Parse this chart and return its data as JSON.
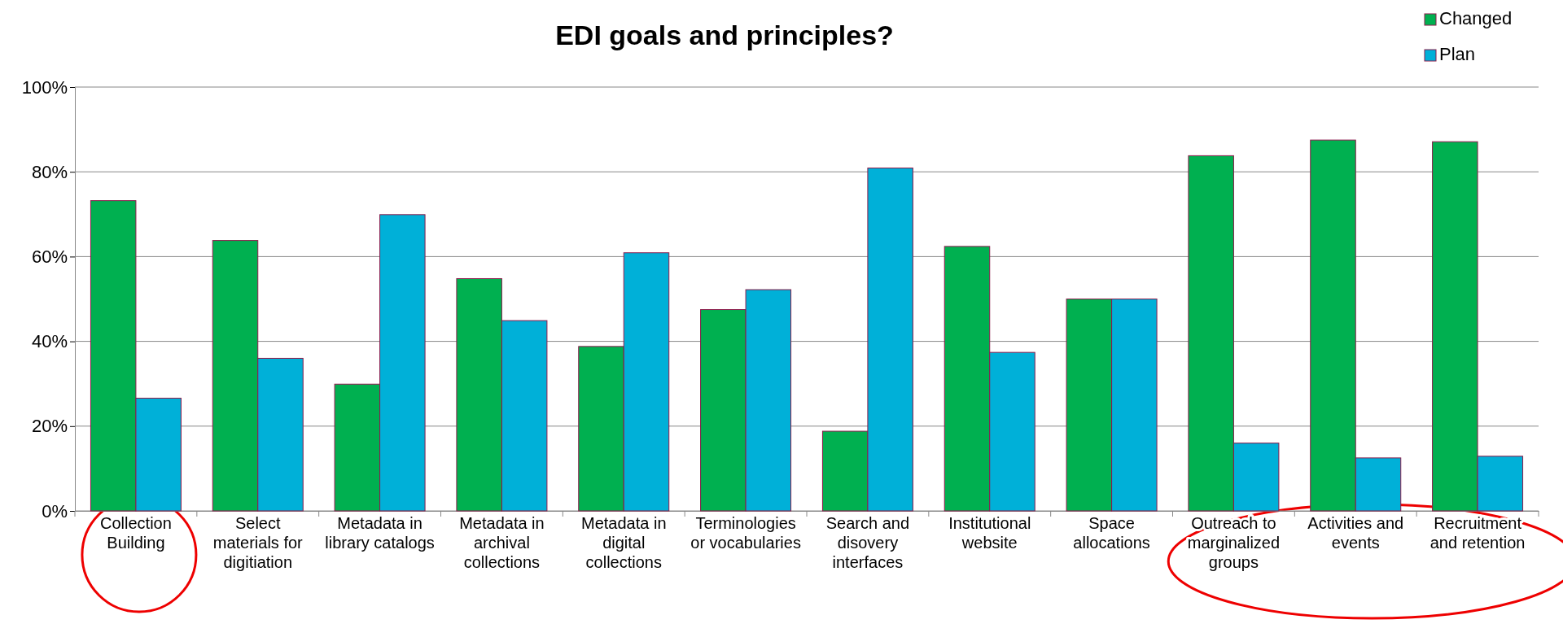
{
  "chart_data": {
    "type": "bar",
    "title": "EDI goals and principles?",
    "categories": [
      "Collection Building",
      "Select materials for digitiation",
      "Metadata in library catalogs",
      "Metadata in archival collections",
      "Metadata in digital collections",
      "Terminologies or vocabularies",
      "Search and disovery interfaces",
      "Institutional website",
      "Space allocations",
      "Outreach to marginalized groups",
      "Activities and events",
      "Recruitment and retention"
    ],
    "series": [
      {
        "name": "Changed",
        "color": "#00b050",
        "values": [
          73.2,
          63.8,
          29.9,
          54.8,
          38.8,
          47.5,
          18.8,
          62.4,
          50,
          83.8,
          87.5,
          87.1
        ]
      },
      {
        "name": "Plan",
        "color": "#00b0d8",
        "values": [
          26.6,
          36.0,
          69.9,
          44.9,
          60.9,
          52.2,
          80.9,
          37.4,
          50,
          16.0,
          12.5,
          12.9
        ]
      }
    ],
    "ylim": [
      0,
      100
    ],
    "yticks": [
      {
        "value": 0,
        "label": "0%"
      },
      {
        "value": 20,
        "label": "20%"
      },
      {
        "value": 40,
        "label": "40%"
      },
      {
        "value": 60,
        "label": "60%"
      },
      {
        "value": 80,
        "label": "80%"
      },
      {
        "value": 100,
        "label": "100%"
      }
    ],
    "grid": "y",
    "legend": "top right"
  }
}
